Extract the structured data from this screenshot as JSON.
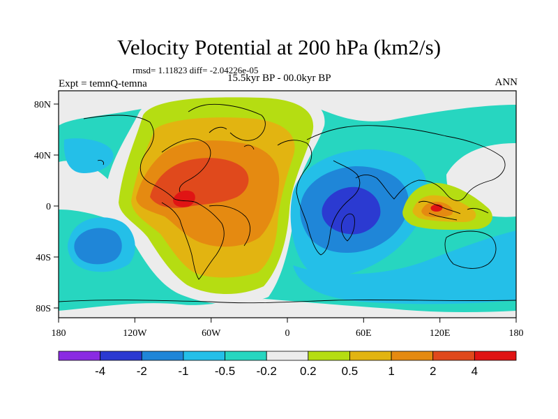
{
  "title": "Velocity Potential at 200 hPa (km2/s)",
  "stats": "rmsd= 1.11823 diff= -2.04226e-05",
  "period": "15.5kyr BP - 00.0kyr BP",
  "experiment": "Expt = temnQ-temna",
  "season": "ANN",
  "chart_data": {
    "type": "heatmap",
    "x_ticks": [
      "180",
      "120W",
      "60W",
      "0",
      "60E",
      "120E",
      "180"
    ],
    "y_ticks": [
      "80N",
      "40N",
      "0",
      "40S",
      "80S"
    ],
    "colorbar": {
      "labels": [
        "-4",
        "-2",
        "-1",
        "-0.5",
        "-0.2",
        "0.2",
        "0.5",
        "1",
        "2",
        "4"
      ],
      "colors": [
        "#8a2be2",
        "#2b3ad1",
        "#1f86d8",
        "#24bfe8",
        "#27d6c0",
        "#ececec",
        "#b5dd12",
        "#e2b411",
        "#e58a11",
        "#e0491c",
        "#e01414"
      ]
    }
  }
}
